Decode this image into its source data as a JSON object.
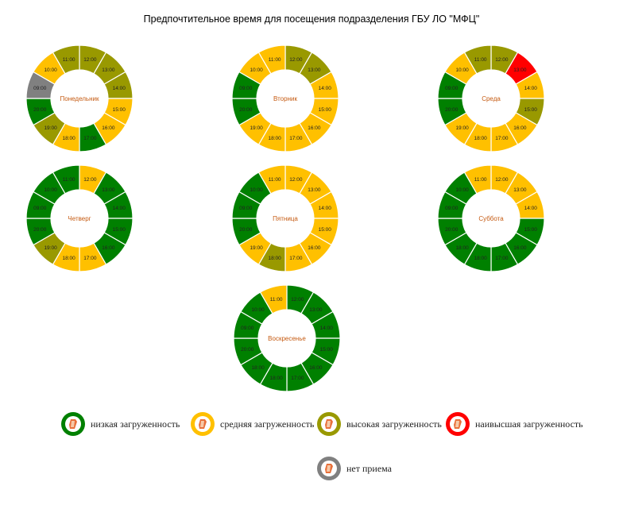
{
  "title": "Предпочтительное время для посещения подразделения ГБУ ЛО \"МФЦ\"",
  "colors": {
    "low": "#008000",
    "medium": "#FFC000",
    "high": "#999900",
    "highest": "#FF0000",
    "closed": "#808080",
    "center_label": "#C55A11"
  },
  "chart_data": [
    {
      "type": "pie",
      "day": "Понедельник",
      "slices": [
        {
          "time": "12:00",
          "load": "high"
        },
        {
          "time": "13:00",
          "load": "high"
        },
        {
          "time": "14:00",
          "load": "high"
        },
        {
          "time": "15:00",
          "load": "medium"
        },
        {
          "time": "16:00",
          "load": "medium"
        },
        {
          "time": "17:00",
          "load": "low"
        },
        {
          "time": "18:00",
          "load": "medium"
        },
        {
          "time": "19:00",
          "load": "high"
        },
        {
          "time": "20:00",
          "load": "low"
        },
        {
          "time": "09:00",
          "load": "closed"
        },
        {
          "time": "10:00",
          "load": "medium"
        },
        {
          "time": "11:00",
          "load": "high"
        }
      ]
    },
    {
      "type": "pie",
      "day": "Вторник",
      "slices": [
        {
          "time": "12:00",
          "load": "high"
        },
        {
          "time": "13:00",
          "load": "high"
        },
        {
          "time": "14:00",
          "load": "medium"
        },
        {
          "time": "15:00",
          "load": "medium"
        },
        {
          "time": "16:00",
          "load": "medium"
        },
        {
          "time": "17:00",
          "load": "medium"
        },
        {
          "time": "18:00",
          "load": "medium"
        },
        {
          "time": "19:00",
          "load": "medium"
        },
        {
          "time": "20:00",
          "load": "low"
        },
        {
          "time": "09:00",
          "load": "low"
        },
        {
          "time": "10:00",
          "load": "medium"
        },
        {
          "time": "11:00",
          "load": "medium"
        }
      ]
    },
    {
      "type": "pie",
      "day": "Среда",
      "slices": [
        {
          "time": "12:00",
          "load": "high"
        },
        {
          "time": "13:00",
          "load": "highest"
        },
        {
          "time": "14:00",
          "load": "medium"
        },
        {
          "time": "15:00",
          "load": "high"
        },
        {
          "time": "16:00",
          "load": "medium"
        },
        {
          "time": "17:00",
          "load": "medium"
        },
        {
          "time": "18:00",
          "load": "medium"
        },
        {
          "time": "19:00",
          "load": "medium"
        },
        {
          "time": "20:00",
          "load": "low"
        },
        {
          "time": "09:00",
          "load": "low"
        },
        {
          "time": "10:00",
          "load": "medium"
        },
        {
          "time": "11:00",
          "load": "high"
        }
      ]
    },
    {
      "type": "pie",
      "day": "Четверг",
      "slices": [
        {
          "time": "12:00",
          "load": "medium"
        },
        {
          "time": "13:00",
          "load": "low"
        },
        {
          "time": "14:00",
          "load": "low"
        },
        {
          "time": "15:00",
          "load": "low"
        },
        {
          "time": "16:00",
          "load": "low"
        },
        {
          "time": "17:00",
          "load": "medium"
        },
        {
          "time": "18:00",
          "load": "medium"
        },
        {
          "time": "19:00",
          "load": "high"
        },
        {
          "time": "20:00",
          "load": "low"
        },
        {
          "time": "09:00",
          "load": "low"
        },
        {
          "time": "10:00",
          "load": "low"
        },
        {
          "time": "11:00",
          "load": "low"
        }
      ]
    },
    {
      "type": "pie",
      "day": "Пятница",
      "slices": [
        {
          "time": "12:00",
          "load": "medium"
        },
        {
          "time": "13:00",
          "load": "medium"
        },
        {
          "time": "14:00",
          "load": "medium"
        },
        {
          "time": "15:00",
          "load": "medium"
        },
        {
          "time": "16:00",
          "load": "medium"
        },
        {
          "time": "17:00",
          "load": "medium"
        },
        {
          "time": "18:00",
          "load": "high"
        },
        {
          "time": "19:00",
          "load": "medium"
        },
        {
          "time": "20:00",
          "load": "low"
        },
        {
          "time": "09:00",
          "load": "low"
        },
        {
          "time": "10:00",
          "load": "low"
        },
        {
          "time": "11:00",
          "load": "medium"
        }
      ]
    },
    {
      "type": "pie",
      "day": "Суббота",
      "slices": [
        {
          "time": "12:00",
          "load": "medium"
        },
        {
          "time": "13:00",
          "load": "medium"
        },
        {
          "time": "14:00",
          "load": "medium"
        },
        {
          "time": "15:00",
          "load": "low"
        },
        {
          "time": "16:00",
          "load": "low"
        },
        {
          "time": "17:00",
          "load": "low"
        },
        {
          "time": "18:00",
          "load": "low"
        },
        {
          "time": "18:00",
          "load": "low"
        },
        {
          "time": "20:00",
          "load": "low"
        },
        {
          "time": "09:00",
          "load": "low"
        },
        {
          "time": "10:00",
          "load": "low"
        },
        {
          "time": "11:00",
          "load": "medium"
        }
      ]
    },
    {
      "type": "pie",
      "day": "Воскресенье",
      "slices": [
        {
          "time": "12:00",
          "load": "low"
        },
        {
          "time": "13:00",
          "load": "low"
        },
        {
          "time": "14:00",
          "load": "low"
        },
        {
          "time": "15:00",
          "load": "low"
        },
        {
          "time": "16:00",
          "load": "low"
        },
        {
          "time": "17:00",
          "load": "low"
        },
        {
          "time": "18:00",
          "load": "low"
        },
        {
          "time": "18:00",
          "load": "low"
        },
        {
          "time": "20:00",
          "load": "low"
        },
        {
          "time": "09:00",
          "load": "low"
        },
        {
          "time": "10:00",
          "load": "low"
        },
        {
          "time": "11:00",
          "load": "medium"
        }
      ]
    }
  ],
  "legend": [
    {
      "key": "low",
      "label": "низкая загруженность"
    },
    {
      "key": "medium",
      "label": "средняя загруженность"
    },
    {
      "key": "high",
      "label": "высокая загруженность"
    },
    {
      "key": "highest",
      "label": "наивысшая загруженность"
    },
    {
      "key": "closed",
      "label": "нет приема"
    }
  ]
}
